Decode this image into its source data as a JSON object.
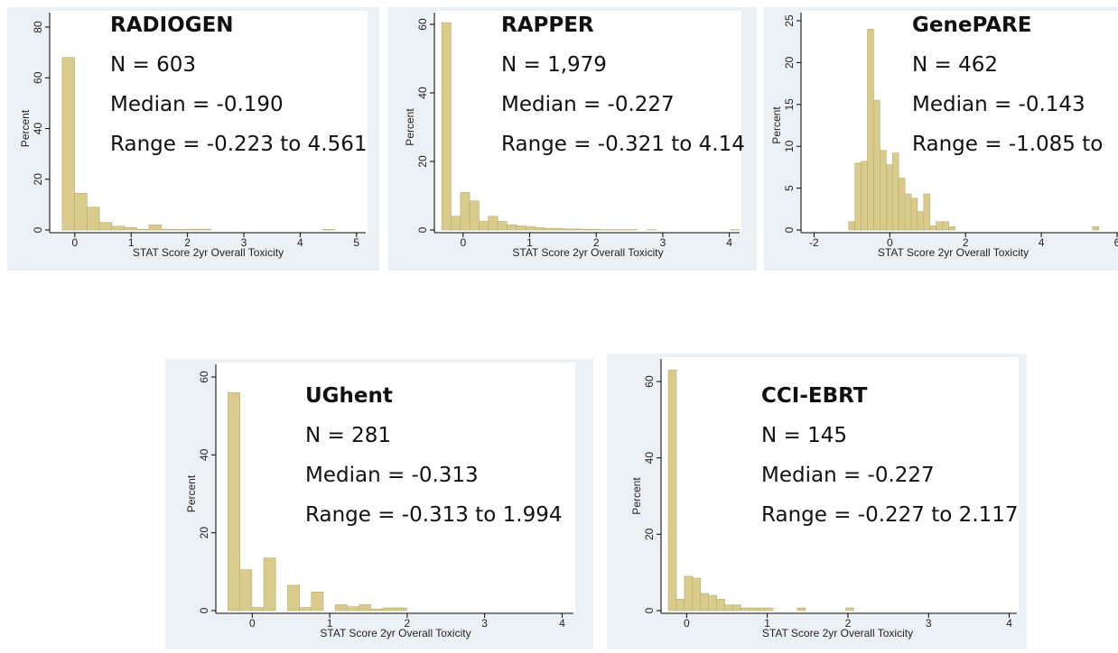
{
  "chart_data": [
    {
      "type": "histogram",
      "title": "RADIOGEN",
      "annotations": [
        "N = 603",
        "Median = -0.190",
        "Range = -0.223 to 4.561"
      ],
      "xlabel": "STAT Score 2yr Overall Toxicity",
      "ylabel": "Percent",
      "color": "#d8cb8c",
      "bins": [
        -0.223,
        -0.003,
        0.217,
        0.437,
        0.657,
        0.877,
        1.097,
        1.317,
        1.537,
        1.757,
        1.977,
        2.197,
        2.417,
        2.637,
        2.857,
        3.077,
        3.297,
        3.517,
        3.737,
        3.957,
        4.177,
        4.397,
        4.617
      ],
      "values": [
        68,
        14.5,
        9,
        3,
        1.5,
        1,
        0.3,
        2,
        0.3,
        0.2,
        0.3,
        0.3,
        0,
        0,
        0,
        0,
        0,
        0,
        0,
        0,
        0,
        0.2
      ],
      "xlim": [
        -0.35,
        5.1
      ],
      "ylim": [
        0,
        80
      ],
      "xticks": [
        0,
        1,
        2,
        3,
        4,
        5
      ],
      "yticks": [
        0,
        20,
        40,
        60,
        80
      ]
    },
    {
      "type": "histogram",
      "title": "RAPPER",
      "annotations": [
        "N = 1,979",
        "Median = -0.227",
        "Range = -0.321 to 4.14"
      ],
      "xlabel": "STAT Score 2yr Overall Toxicity",
      "ylabel": "Percent",
      "color": "#d8cb8c",
      "bins": [
        -0.321,
        -0.181,
        -0.041,
        0.099,
        0.239,
        0.379,
        0.519,
        0.659,
        0.799,
        0.939,
        1.079,
        1.219,
        1.359,
        1.499,
        1.639,
        1.779,
        1.919,
        2.059,
        2.199,
        2.339,
        2.479,
        2.619,
        2.759,
        2.899,
        3.039,
        3.179,
        3.319,
        3.459,
        3.599,
        3.739,
        3.879,
        4.019,
        4.159
      ],
      "values": [
        60.5,
        4,
        11,
        8.5,
        2.5,
        4,
        2.5,
        1.5,
        1.2,
        1,
        0.7,
        0.5,
        0.5,
        0.3,
        0.3,
        0.2,
        0.2,
        0.1,
        0.1,
        0.1,
        0.1,
        0,
        0.1,
        0,
        0,
        0,
        0,
        0,
        0,
        0,
        0,
        0.1
      ],
      "xlim": [
        -0.35,
        4.1
      ],
      "ylim": [
        0,
        60
      ],
      "xticks": [
        0,
        1,
        2,
        3,
        4
      ],
      "yticks": [
        0,
        20,
        40,
        60
      ]
    },
    {
      "type": "histogram",
      "title": "GenePARE",
      "annotations": [
        "N = 462",
        "Median = -0.143",
        "Range = -1.085 to"
      ],
      "xlabel": "STAT Score 2yr Overall Toxicity",
      "ylabel": "Percent",
      "color": "#d8cb8c",
      "bins": [
        -1.085,
        -0.92,
        -0.755,
        -0.59,
        -0.425,
        -0.26,
        -0.095,
        0.07,
        0.235,
        0.4,
        0.565,
        0.73,
        0.895,
        1.06,
        1.225,
        1.39,
        1.555,
        1.72,
        1.885,
        2.05,
        2.215,
        2.38,
        2.545,
        2.71,
        2.875,
        3.04,
        3.205,
        3.37,
        3.535,
        3.7,
        3.865,
        4.03,
        4.195,
        4.36,
        4.525,
        4.69,
        4.855,
        5.02,
        5.185,
        5.35,
        5.515
      ],
      "values": [
        1,
        8,
        8.2,
        24,
        15.5,
        9.5,
        7.8,
        9.2,
        6.2,
        4.3,
        3.8,
        2.2,
        4.3,
        0.5,
        1,
        1,
        0.4,
        0,
        0,
        0,
        0,
        0,
        0,
        0,
        0,
        0,
        0,
        0,
        0,
        0,
        0,
        0,
        0,
        0,
        0,
        0,
        0,
        0,
        0,
        0.4
      ],
      "xlim": [
        -2.2,
        6
      ],
      "ylim": [
        0,
        25
      ],
      "xticks": [
        -2,
        0,
        2,
        4,
        6
      ],
      "yticks": [
        0,
        5,
        10,
        15,
        20,
        25
      ]
    },
    {
      "type": "histogram",
      "title": "UGhent",
      "annotations": [
        "N = 281",
        "Median = -0.313",
        "Range = -0.313 to 1.994"
      ],
      "xlabel": "STAT Score 2yr Overall Toxicity",
      "ylabel": "Percent",
      "color": "#d8cb8c",
      "bins": [
        -0.313,
        -0.159,
        -0.005,
        0.148,
        0.302,
        0.456,
        0.61,
        0.763,
        0.917,
        1.071,
        1.225,
        1.379,
        1.532,
        1.686,
        1.84,
        1.994
      ],
      "values": [
        56,
        10.5,
        0.8,
        13.5,
        0,
        6.5,
        0.8,
        4.8,
        0,
        1.5,
        1,
        1.5,
        0.4,
        0.7,
        0.7
      ],
      "xlim": [
        -0.4,
        4.1
      ],
      "ylim": [
        0,
        60
      ],
      "xticks": [
        0,
        1,
        2,
        3,
        4
      ],
      "yticks": [
        0,
        20,
        40,
        60
      ]
    },
    {
      "type": "histogram",
      "title": "CCI-EBRT",
      "annotations": [
        "N = 145",
        "Median = -0.227",
        "Range = -0.227 to 2.117"
      ],
      "xlabel": "STAT Score 2yr Overall Toxicity",
      "ylabel": "Percent",
      "color": "#d8cb8c",
      "bins": [
        -0.227,
        -0.127,
        -0.027,
        0.073,
        0.173,
        0.273,
        0.373,
        0.473,
        0.573,
        0.673,
        0.773,
        0.873,
        0.973,
        1.073,
        1.173,
        1.273,
        1.373,
        1.473,
        1.573,
        1.673,
        1.773,
        1.873,
        1.973,
        2.073,
        2.173
      ],
      "values": [
        63,
        3,
        9,
        8.5,
        4.5,
        4,
        3,
        1.5,
        1.5,
        0.7,
        0.7,
        0.7,
        0.7,
        0,
        0,
        0,
        0.7,
        0,
        0,
        0,
        0,
        0,
        0.7,
        0
      ],
      "xlim": [
        -0.25,
        4.05
      ],
      "ylim": [
        0,
        60
      ],
      "xticks": [
        0,
        1,
        2,
        3,
        4
      ],
      "yticks": [
        0,
        20,
        40,
        60
      ]
    }
  ]
}
